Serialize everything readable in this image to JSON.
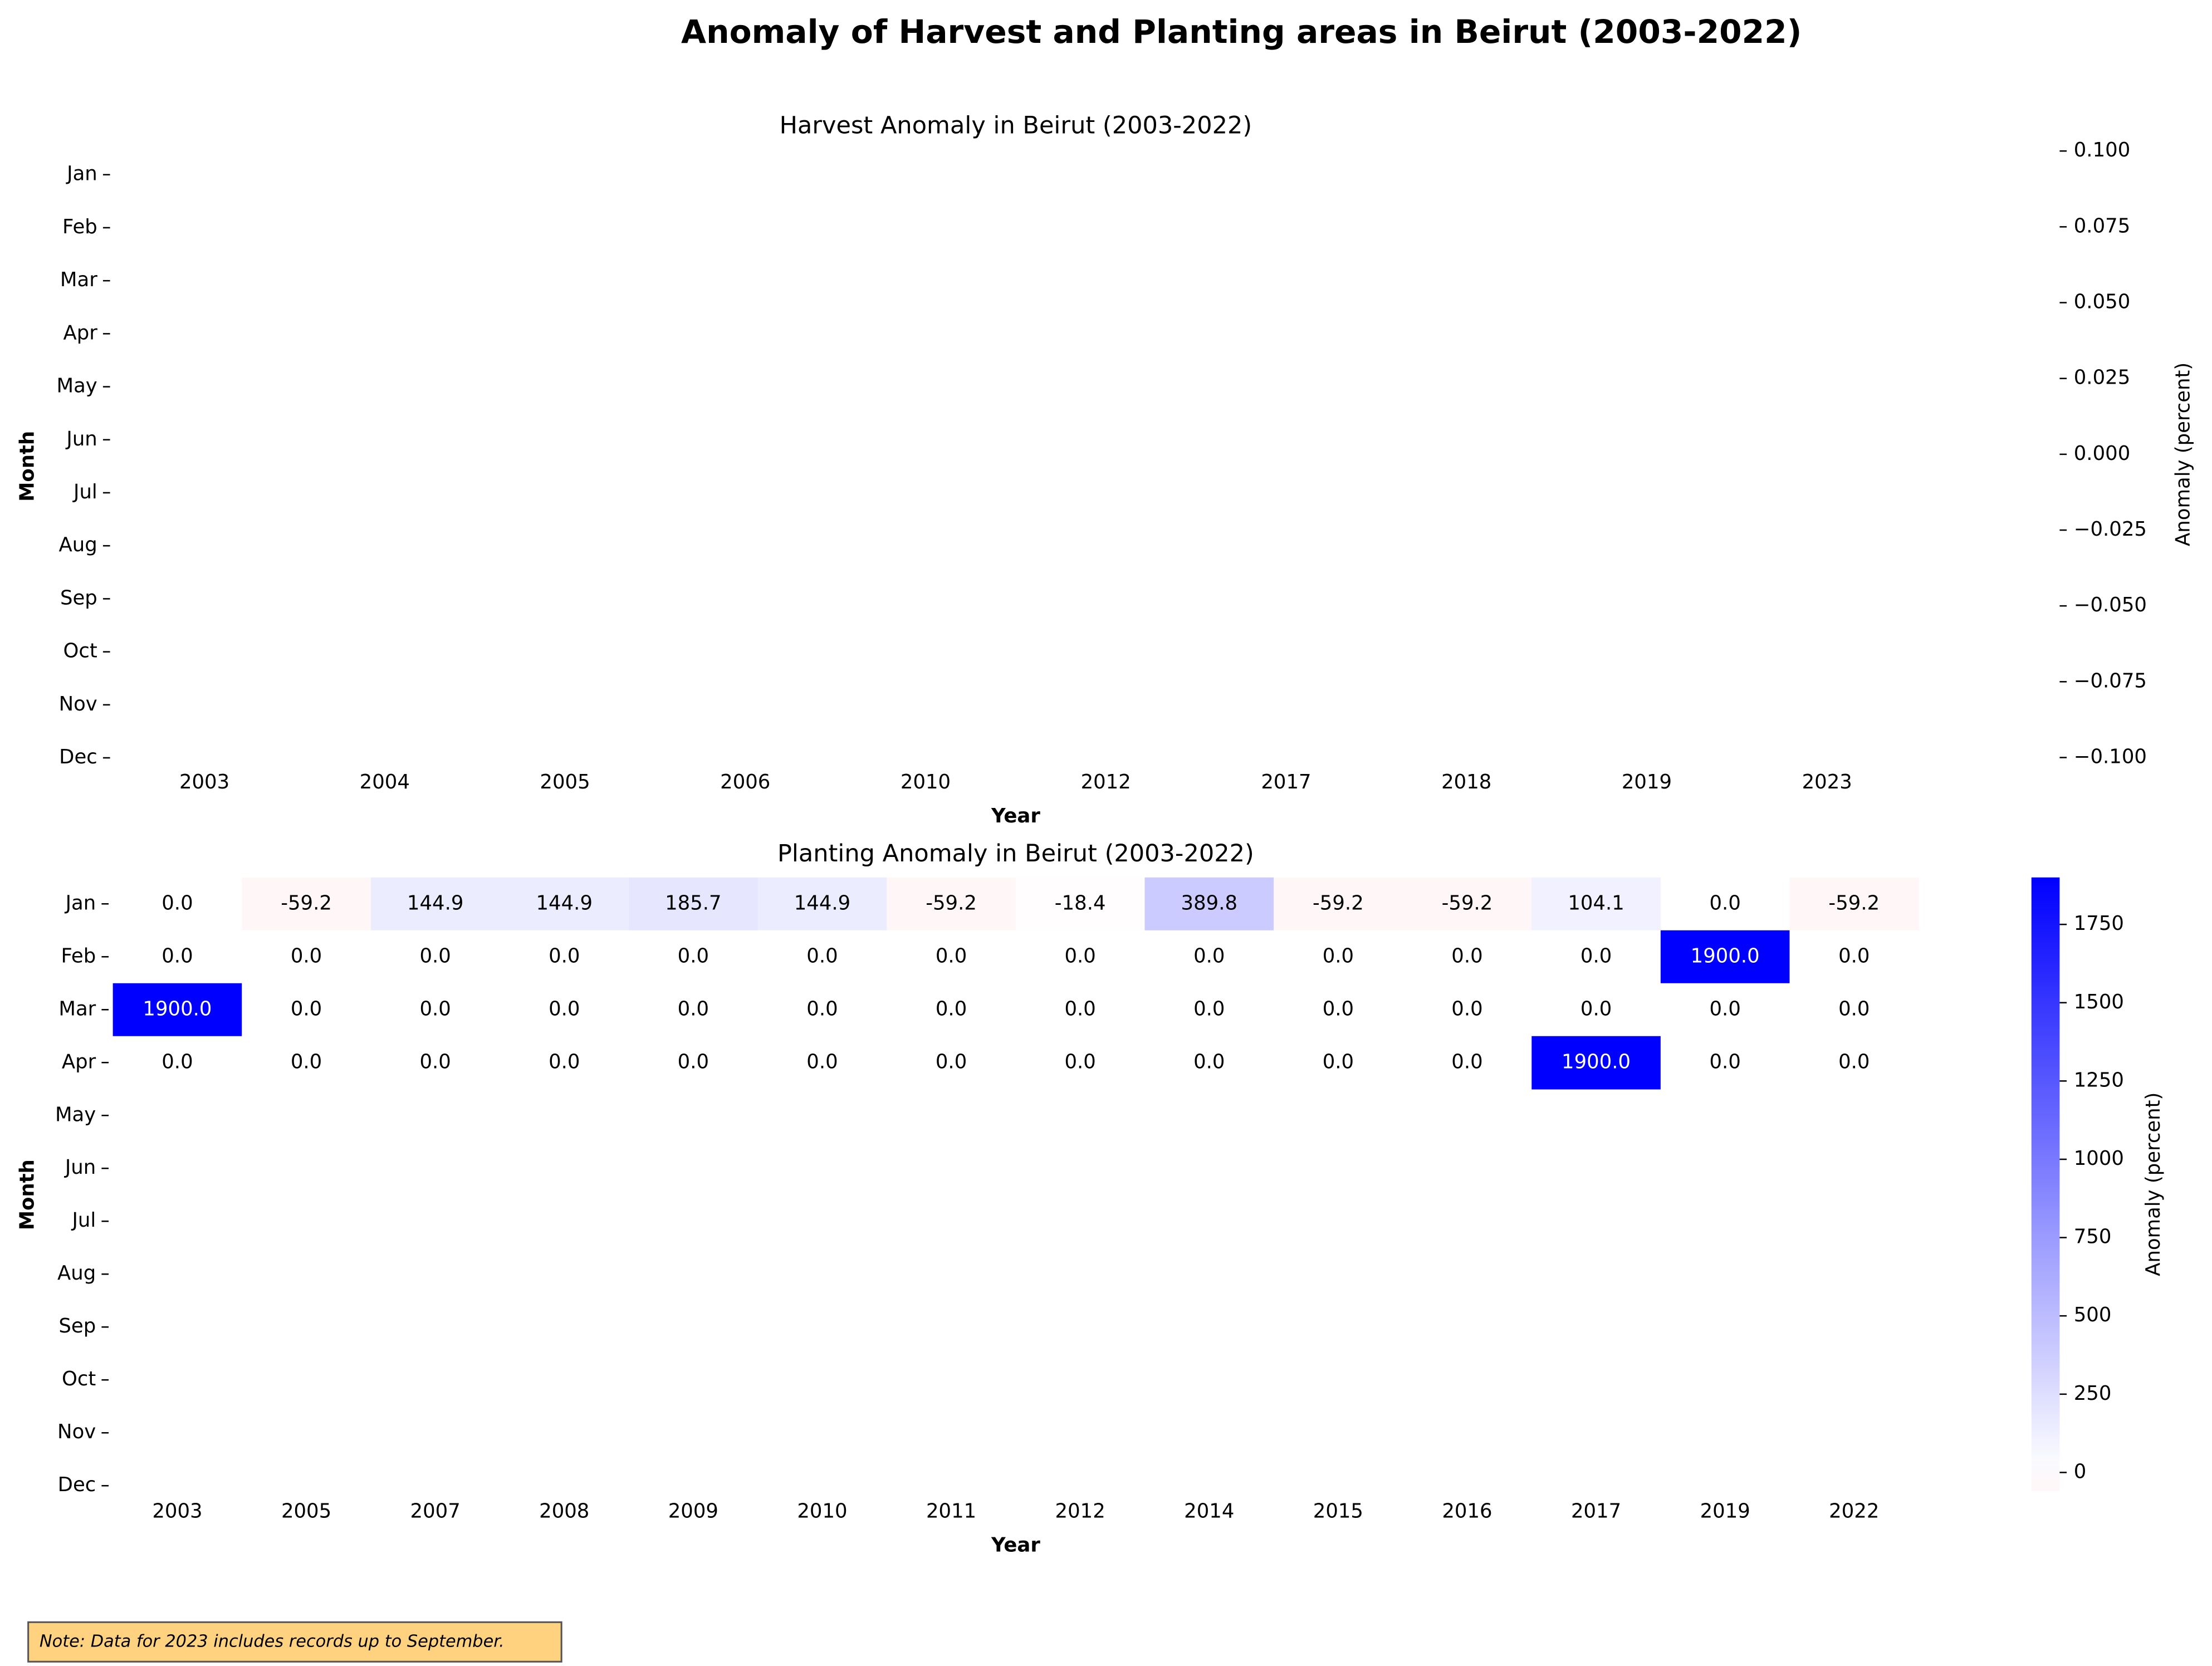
{
  "title": "Anomaly of Harvest and Planting areas in Beirut (2003-2022)",
  "note": "Note: Data for 2023 includes records up to September.",
  "chart_data": [
    {
      "type": "heatmap",
      "title": "Harvest Anomaly in Beirut (2003-2022)",
      "xlabel": "Year",
      "ylabel": "Month",
      "rows": [
        "Jan",
        "Feb",
        "Mar",
        "Apr",
        "May",
        "Jun",
        "Jul",
        "Aug",
        "Sep",
        "Oct",
        "Nov",
        "Dec"
      ],
      "categories": [
        "2003",
        "2004",
        "2005",
        "2006",
        "2010",
        "2012",
        "2017",
        "2018",
        "2019",
        "2023"
      ],
      "colorbar_label": "Anomaly (percent)",
      "clim": [
        -0.1,
        0.1
      ],
      "cticks": [
        {
          "value": 0.1,
          "label": "0.100"
        },
        {
          "value": 0.075,
          "label": "0.075"
        },
        {
          "value": 0.05,
          "label": "0.050"
        },
        {
          "value": 0.025,
          "label": "0.025"
        },
        {
          "value": 0,
          "label": "0.000"
        },
        {
          "value": -0.025,
          "label": "−0.025"
        },
        {
          "value": -0.05,
          "label": "−0.050"
        },
        {
          "value": -0.075,
          "label": "−0.075"
        },
        {
          "value": -0.1,
          "label": "−0.100"
        }
      ]
    },
    {
      "type": "heatmap",
      "title": "Planting Anomaly in Beirut (2003-2022)",
      "xlabel": "Year",
      "ylabel": "Month",
      "rows": [
        "Jan",
        "Feb",
        "Mar",
        "Apr",
        "May",
        "Jun",
        "Jul",
        "Aug",
        "Sep",
        "Oct",
        "Nov",
        "Dec"
      ],
      "categories": [
        "2003",
        "2005",
        "2007",
        "2008",
        "2009",
        "2010",
        "2011",
        "2012",
        "2014",
        "2015",
        "2016",
        "2017",
        "2019",
        "2022"
      ],
      "colorbar_label": "Anomaly (percent)",
      "clim": [
        -59.2,
        1900
      ],
      "cticks": [
        0,
        250,
        500,
        750,
        1000,
        1250,
        1500,
        1750
      ],
      "colors": {
        "low": "#ff0000",
        "mid": "#ffffff",
        "high": "#0000ff"
      },
      "values": [
        [
          0,
          -59.2,
          144.9,
          144.9,
          185.7,
          144.9,
          -59.2,
          -18.4,
          389.8,
          -59.2,
          -59.2,
          104.1,
          0,
          -59.2
        ],
        [
          0,
          0,
          0,
          0,
          0,
          0,
          0,
          0,
          0,
          0,
          0,
          0,
          1900,
          0
        ],
        [
          1900,
          0,
          0,
          0,
          0,
          0,
          0,
          0,
          0,
          0,
          0,
          0,
          0,
          0
        ],
        [
          0,
          0,
          0,
          0,
          0,
          0,
          0,
          0,
          0,
          0,
          0,
          1900,
          0,
          0
        ],
        [
          null,
          null,
          null,
          null,
          null,
          null,
          null,
          null,
          null,
          null,
          null,
          null,
          null,
          null
        ],
        [
          null,
          null,
          null,
          null,
          null,
          null,
          null,
          null,
          null,
          null,
          null,
          null,
          null,
          null
        ],
        [
          null,
          null,
          null,
          null,
          null,
          null,
          null,
          null,
          null,
          null,
          null,
          null,
          null,
          null
        ],
        [
          null,
          null,
          null,
          null,
          null,
          null,
          null,
          null,
          null,
          null,
          null,
          null,
          null,
          null
        ],
        [
          null,
          null,
          null,
          null,
          null,
          null,
          null,
          null,
          null,
          null,
          null,
          null,
          null,
          null
        ],
        [
          null,
          null,
          null,
          null,
          null,
          null,
          null,
          null,
          null,
          null,
          null,
          null,
          null,
          null
        ],
        [
          null,
          null,
          null,
          null,
          null,
          null,
          null,
          null,
          null,
          null,
          null,
          null,
          null,
          null
        ],
        [
          null,
          null,
          null,
          null,
          null,
          null,
          null,
          null,
          null,
          null,
          null,
          null,
          null,
          null
        ]
      ],
      "value_labels": [
        [
          "0.0",
          "-59.2",
          "144.9",
          "144.9",
          "185.7",
          "144.9",
          "-59.2",
          "-18.4",
          "389.8",
          "-59.2",
          "-59.2",
          "104.1",
          "0.0",
          "-59.2"
        ],
        [
          "0.0",
          "0.0",
          "0.0",
          "0.0",
          "0.0",
          "0.0",
          "0.0",
          "0.0",
          "0.0",
          "0.0",
          "0.0",
          "0.0",
          "1900.0",
          "0.0"
        ],
        [
          "1900.0",
          "0.0",
          "0.0",
          "0.0",
          "0.0",
          "0.0",
          "0.0",
          "0.0",
          "0.0",
          "0.0",
          "0.0",
          "0.0",
          "0.0",
          "0.0"
        ],
        [
          "0.0",
          "0.0",
          "0.0",
          "0.0",
          "0.0",
          "0.0",
          "0.0",
          "0.0",
          "0.0",
          "0.0",
          "0.0",
          "1900.0",
          "0.0",
          "0.0"
        ],
        [
          null,
          null,
          null,
          null,
          null,
          null,
          null,
          null,
          null,
          null,
          null,
          null,
          null,
          null
        ],
        [
          null,
          null,
          null,
          null,
          null,
          null,
          null,
          null,
          null,
          null,
          null,
          null,
          null,
          null
        ],
        [
          null,
          null,
          null,
          null,
          null,
          null,
          null,
          null,
          null,
          null,
          null,
          null,
          null,
          null
        ],
        [
          null,
          null,
          null,
          null,
          null,
          null,
          null,
          null,
          null,
          null,
          null,
          null,
          null,
          null
        ],
        [
          null,
          null,
          null,
          null,
          null,
          null,
          null,
          null,
          null,
          null,
          null,
          null,
          null,
          null
        ],
        [
          null,
          null,
          null,
          null,
          null,
          null,
          null,
          null,
          null,
          null,
          null,
          null,
          null,
          null
        ],
        [
          null,
          null,
          null,
          null,
          null,
          null,
          null,
          null,
          null,
          null,
          null,
          null,
          null,
          null
        ],
        [
          null,
          null,
          null,
          null,
          null,
          null,
          null,
          null,
          null,
          null,
          null,
          null,
          null,
          null
        ]
      ]
    }
  ]
}
